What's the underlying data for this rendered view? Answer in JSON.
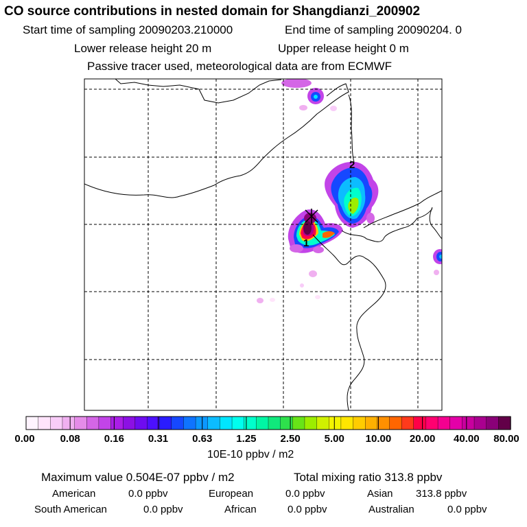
{
  "title": "CO  source contributions in nested domain for Shangdianzi_200902",
  "sampling": {
    "start_label": "Start time of sampling 20090203.210000",
    "end_label": "End time of sampling 20090204.     0"
  },
  "release": {
    "lower_label": "Lower release height   20 m",
    "upper_label": "Upper release height    0 m"
  },
  "note": "Passive tracer used, meteorological data are from ECMWF",
  "map": {
    "markers": [
      {
        "label": "1"
      },
      {
        "label": "2"
      }
    ]
  },
  "colorbar": {
    "units": "10E-10 ppbv / m2",
    "tick_labels": [
      "0.00",
      "0.08",
      "0.16",
      "0.31",
      "0.63",
      "1.25",
      "2.50",
      "5.00",
      "10.00",
      "20.00",
      "40.00",
      "80.00"
    ],
    "colors": [
      "#fff4ff",
      "#ffe4fb",
      "#f8ccf8",
      "#f0b0f0",
      "#e58ce8",
      "#d466e6",
      "#c244e8",
      "#aa1ee6",
      "#8c10e4",
      "#6e0cf0",
      "#4c10ff",
      "#2a1cff",
      "#1648ff",
      "#0f74ff",
      "#0c98ff",
      "#0cbcff",
      "#00e6ff",
      "#00ffee",
      "#00ffcc",
      "#00f6a4",
      "#10e87c",
      "#2ee04c",
      "#68e418",
      "#9ced00",
      "#d0f000",
      "#f4f400",
      "#ffe600",
      "#ffcc00",
      "#ffb000",
      "#ff9000",
      "#ff6600",
      "#ff3a1c",
      "#ff0048",
      "#ff0070",
      "#f40090",
      "#e400a8",
      "#c8009e",
      "#aa0090",
      "#8a0078",
      "#620048"
    ]
  },
  "summary": {
    "max_line": "Maximum value  0.504E-07 ppbv / m2",
    "total_line": "Total mixing ratio      313.8 ppbv",
    "regions": [
      {
        "name": "American",
        "value": "0.0 ppbv"
      },
      {
        "name": "European",
        "value": "0.0 ppbv"
      },
      {
        "name": "Asian",
        "value": "313.8 ppbv"
      },
      {
        "name": "South American",
        "value": "0.0 ppbv"
      },
      {
        "name": "African",
        "value": "0.0 ppbv"
      },
      {
        "name": "Australian",
        "value": "0.0 ppbv"
      }
    ]
  },
  "chart_data": {
    "type": "heatmap",
    "title": "CO  source contributions in nested domain for Shangdianzi_200902",
    "colorbar_label": "10E-10 ppbv / m2",
    "color_levels": [
      0.0,
      0.08,
      0.16,
      0.31,
      0.63,
      1.25,
      2.5,
      5.0,
      10.0,
      20.0,
      40.0,
      80.0
    ],
    "max_value": "0.504E-07 ppbv / m2",
    "total_mixing_ratio_ppbv": 313.8,
    "grid": true,
    "receptor_marker": "x"
  }
}
